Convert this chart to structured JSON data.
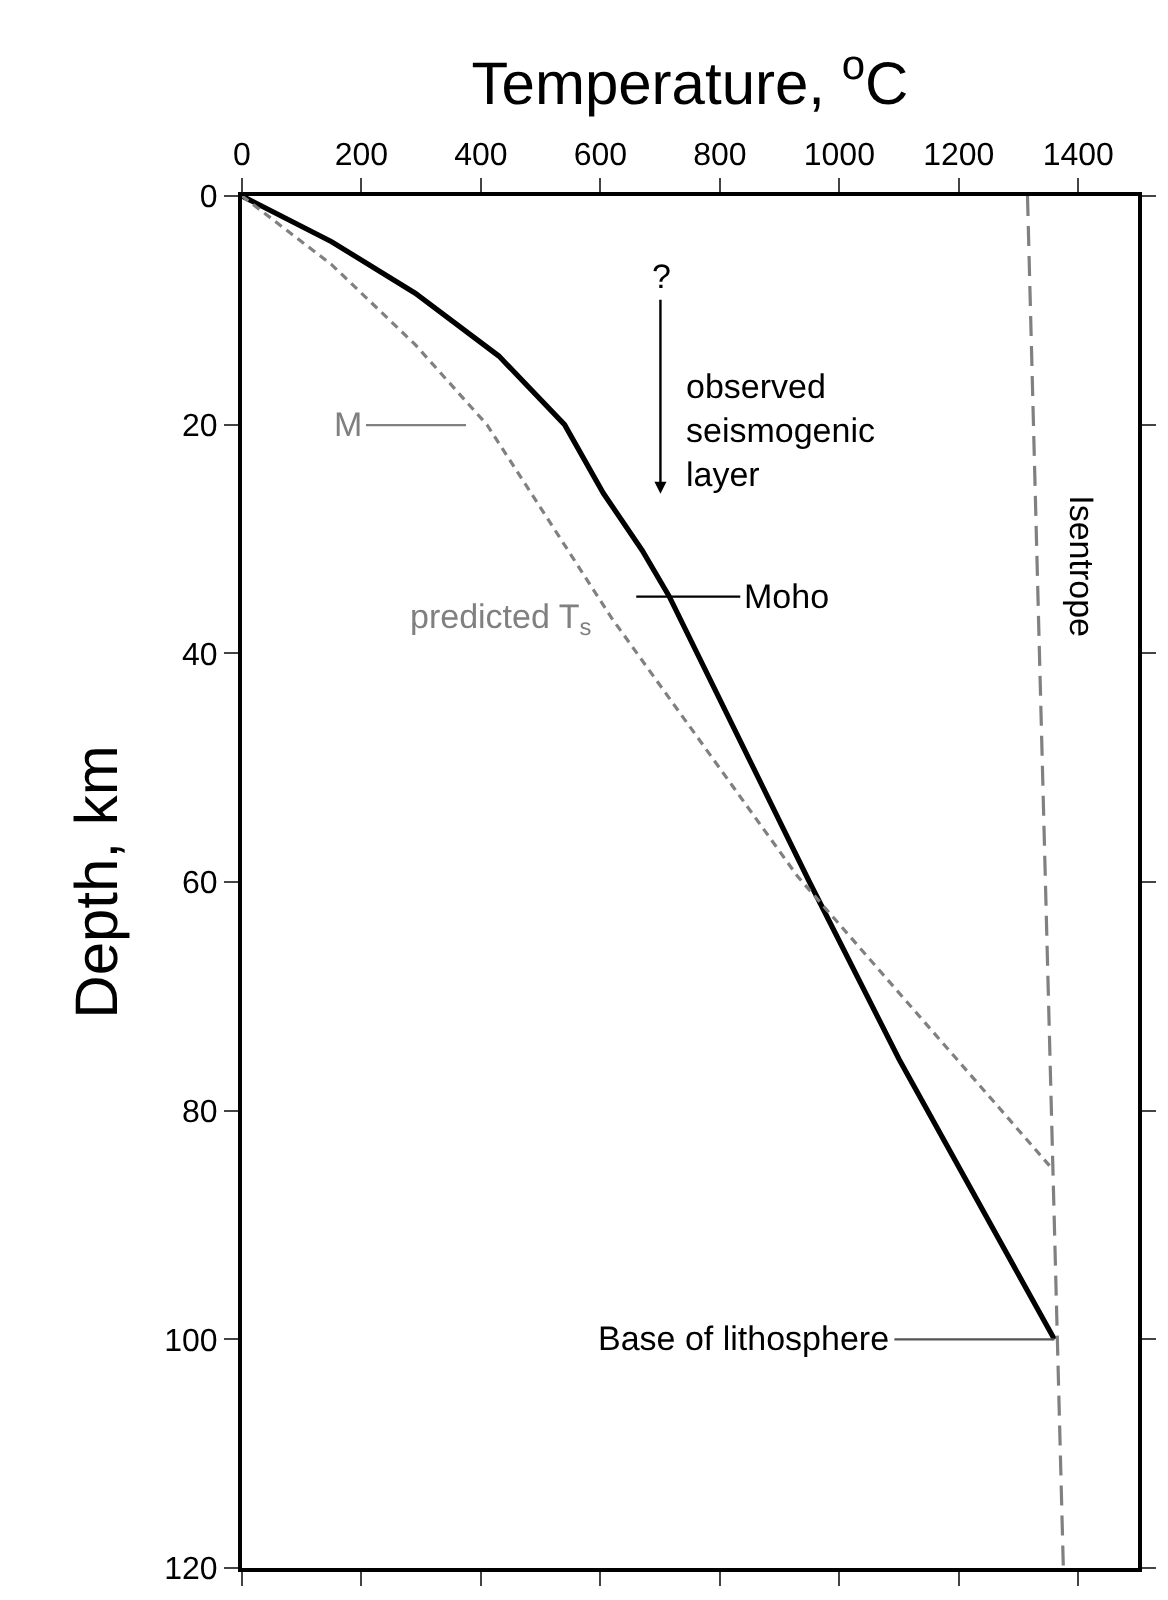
{
  "chart_data": {
    "type": "line",
    "xlabel": "Temperature, $^{o}$C",
    "ylabel": "Depth, km",
    "xlim": [
      0,
      1500
    ],
    "xticks": [
      0,
      200,
      400,
      600,
      800,
      1000,
      1200,
      1400
    ],
    "ylim": [
      120,
      0
    ],
    "yticks": [
      0,
      20,
      40,
      60,
      80,
      100,
      120
    ],
    "series": [
      {
        "color": "#000000",
        "line_style": "solid",
        "x": [
          0,
          150,
          290,
          430,
          540,
          605,
          670,
          715,
          950,
          1100,
          1360
        ],
        "values": [
          0,
          4,
          8.5,
          14,
          20,
          26,
          31,
          35,
          60,
          75.5,
          100
        ]
      },
      {
        "name": "predicted T$_{s}$",
        "color": "#808080",
        "line_style": "dashed",
        "x": [
          0,
          150,
          290,
          410,
          620,
          930,
          1355
        ],
        "values": [
          0,
          6,
          13,
          20,
          37,
          59.5,
          85
        ]
      },
      {
        "name": "Isentrope",
        "color": "#808080",
        "line_style": "dashed",
        "x": [
          1315,
          1375
        ],
        "values": [
          0,
          120
        ]
      }
    ],
    "annotations": [
      "M",
      "?",
      "observed\nseismogenic\nlayer",
      "Moho",
      {
        "text": "Base of lithosphere",
        "x": 1360,
        "y": 100
      }
    ],
    "tick_labels": "xy"
  }
}
